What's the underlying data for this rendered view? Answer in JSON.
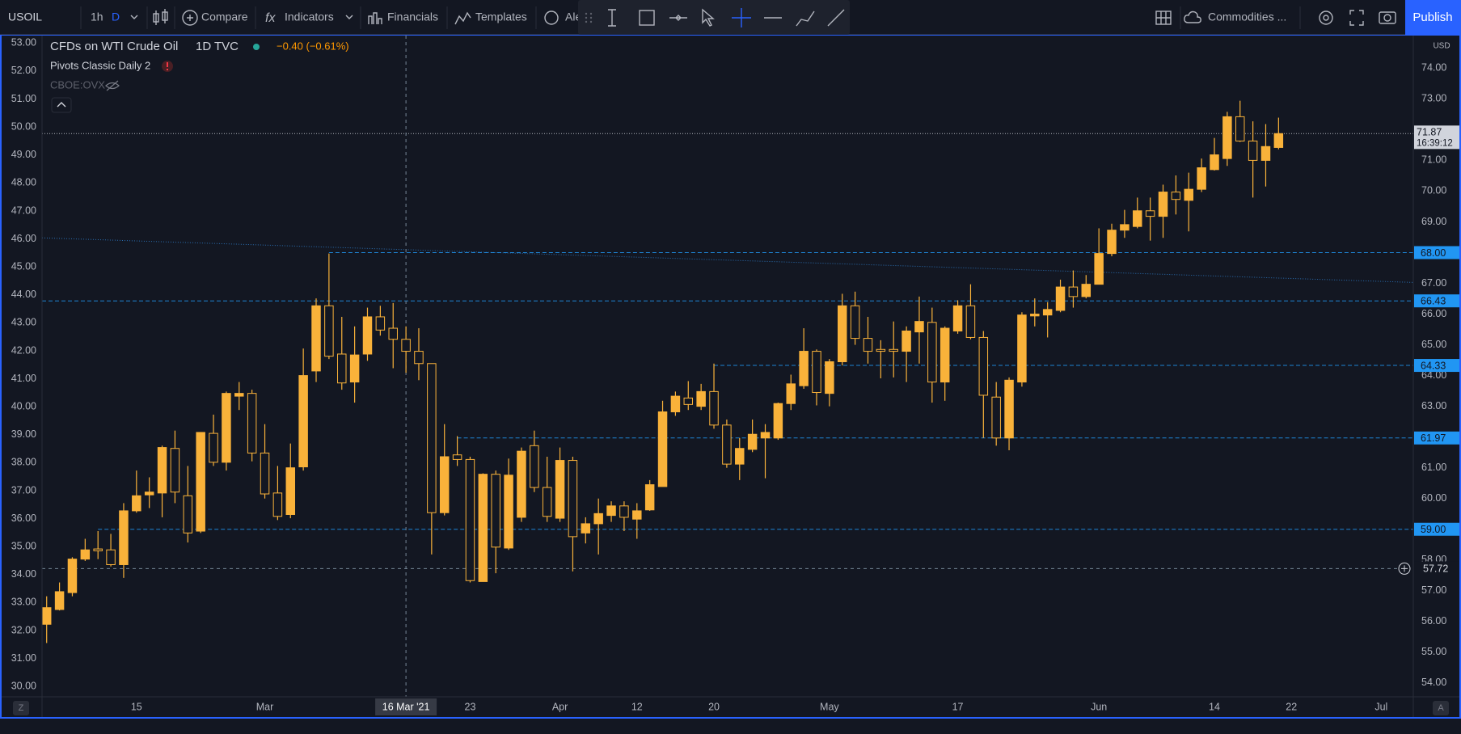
{
  "toolbar": {
    "symbol": "USOIL",
    "interval": "1h",
    "interval_active": "D",
    "compare": "Compare",
    "indicators": "Indicators",
    "financials": "Financials",
    "templates": "Templates",
    "alerts": "Ale",
    "layout": "Commodities ...",
    "publish": "Publish"
  },
  "axis_buttons": {
    "left": "Z",
    "right": "A"
  },
  "chart_data": {
    "type": "candlestick",
    "title": "CFDs on WTI Crude Oil",
    "interval": "1D",
    "source": "TVC",
    "change": "−0.40 (−0.61%)",
    "indicators": [
      "Pivots Classic Daily 2",
      "CBOE:OVX"
    ],
    "color": "#f9b23a",
    "level_color": "#2196f3",
    "open": [
      55.91,
      56.39,
      56.94,
      58.03,
      58.36,
      58.33,
      57.85,
      59.6,
      60.12,
      60.18,
      61.63,
      60.09,
      58.94,
      62.12,
      61.18,
      63.33,
      63.42,
      61.48,
      60.18,
      59.48,
      61.03,
      64.15,
      66.27,
      64.7,
      63.79,
      64.7,
      65.91,
      65.54,
      65.18,
      64.79,
      64.39,
      59.54,
      61.42,
      61.27,
      57.3,
      60.79,
      58.39,
      59.39,
      61.72,
      60.36,
      59.36,
      61.24,
      58.88,
      59.18,
      59.45,
      59.76,
      59.33,
      59.63,
      60.39,
      62.82,
      63.27,
      63.0,
      63.48,
      62.39,
      61.12,
      61.6,
      61.97,
      61.97,
      63.09,
      63.67,
      64.79,
      63.42,
      64.45,
      66.27,
      65.21,
      64.85,
      64.85,
      64.79,
      65.42,
      65.73,
      63.79,
      65.45,
      66.27,
      65.24,
      63.3,
      61.97,
      63.79,
      65.94,
      65.97,
      66.12,
      66.88,
      66.57,
      66.97,
      67.97,
      68.73,
      68.85,
      69.36,
      69.18,
      69.97,
      69.7,
      70.06,
      70.7,
      71.06,
      72.42,
      71.63,
      71.0,
      71.42
    ],
    "high": [
      56.82,
      57.27,
      58.09,
      58.69,
      58.94,
      58.85,
      59.85,
      60.91,
      60.69,
      61.72,
      62.21,
      61.06,
      62.15,
      62.73,
      63.48,
      63.79,
      63.54,
      62.42,
      61.06,
      61.79,
      64.88,
      66.51,
      67.97,
      65.91,
      65.6,
      66.21,
      66.27,
      66.36,
      65.6,
      65.54,
      64.39,
      62.42,
      62.03,
      61.36,
      60.82,
      60.91,
      61.3,
      61.66,
      62.21,
      61.36,
      61.66,
      61.36,
      59.39,
      60.0,
      59.91,
      59.91,
      59.85,
      60.6,
      63.18,
      63.48,
      63.82,
      63.73,
      64.39,
      62.57,
      61.97,
      62.57,
      62.42,
      63.12,
      64.03,
      65.54,
      64.85,
      64.54,
      66.66,
      66.73,
      65.91,
      65.15,
      65.76,
      65.6,
      66.57,
      66.21,
      65.6,
      66.45,
      66.97,
      65.45,
      63.79,
      63.94,
      66.06,
      66.51,
      66.39,
      67.12,
      67.42,
      67.27,
      68.79,
      68.94,
      69.39,
      69.79,
      69.79,
      70.21,
      70.51,
      70.6,
      71.06,
      71.73,
      72.58,
      72.94,
      72.27,
      72.18,
      72.39
    ],
    "low": [
      55.3,
      56.36,
      56.82,
      57.97,
      58.03,
      57.79,
      57.42,
      59.54,
      59.69,
      59.39,
      59.85,
      58.57,
      58.88,
      61.06,
      60.91,
      62.88,
      61.21,
      60.0,
      59.3,
      59.36,
      60.91,
      63.79,
      64.54,
      63.54,
      63.12,
      64.48,
      65.3,
      64.24,
      64.09,
      63.85,
      58.18,
      59.45,
      61.06,
      57.27,
      57.33,
      57.57,
      58.33,
      59.24,
      60.21,
      59.24,
      59.24,
      57.63,
      58.54,
      58.18,
      59.24,
      58.94,
      58.69,
      59.6,
      60.39,
      62.69,
      62.88,
      62.88,
      62.27,
      61.0,
      60.6,
      61.51,
      60.66,
      61.91,
      62.88,
      63.57,
      63.03,
      63.0,
      64.33,
      65.0,
      64.39,
      63.91,
      63.94,
      63.79,
      64.39,
      63.12,
      63.18,
      65.36,
      65.18,
      61.97,
      61.72,
      61.57,
      63.64,
      65.6,
      65.24,
      66.06,
      66.21,
      66.51,
      66.97,
      67.88,
      68.48,
      68.79,
      68.39,
      68.48,
      69.24,
      68.69,
      69.97,
      70.67,
      70.82,
      71.6,
      69.79,
      70.15,
      71.36
    ],
    "close": [
      56.45,
      56.97,
      58.03,
      58.33,
      58.3,
      57.85,
      59.6,
      60.09,
      60.21,
      61.66,
      60.21,
      58.88,
      62.15,
      61.18,
      63.42,
      63.42,
      61.48,
      60.15,
      59.42,
      61.0,
      64.0,
      66.27,
      64.63,
      63.76,
      64.67,
      65.91,
      65.48,
      65.18,
      64.79,
      64.39,
      59.54,
      61.36,
      61.27,
      57.33,
      60.79,
      58.42,
      60.76,
      61.54,
      60.36,
      59.42,
      61.24,
      58.76,
      59.18,
      59.51,
      59.76,
      59.39,
      59.6,
      60.45,
      62.82,
      63.33,
      63.06,
      63.48,
      62.39,
      61.12,
      61.63,
      62.09,
      62.15,
      63.09,
      63.73,
      64.79,
      63.45,
      64.45,
      66.27,
      65.21,
      64.79,
      64.79,
      64.79,
      65.45,
      65.76,
      63.79,
      65.54,
      66.27,
      65.24,
      63.36,
      61.97,
      63.85,
      65.97,
      66.0,
      66.15,
      66.88,
      66.57,
      66.97,
      67.97,
      68.73,
      68.91,
      69.36,
      69.18,
      69.97,
      69.73,
      70.06,
      70.76,
      71.18,
      72.42,
      71.63,
      71.0,
      71.45,
      71.87
    ],
    "xlim": [
      -0.36,
      106.5
    ],
    "xticks": [
      {
        "value": 7,
        "label": "15"
      },
      {
        "value": 17,
        "label": "Mar"
      },
      {
        "value": 33,
        "label": "23"
      },
      {
        "value": 40,
        "label": "Apr"
      },
      {
        "value": 46,
        "label": "12"
      },
      {
        "value": 52,
        "label": "20"
      },
      {
        "value": 61,
        "label": "May"
      },
      {
        "value": 71,
        "label": "17"
      },
      {
        "value": 82,
        "label": "Jun"
      },
      {
        "value": 91,
        "label": "14"
      },
      {
        "value": 97,
        "label": "22"
      },
      {
        "value": 104,
        "label": "Jul"
      }
    ],
    "ylim": [
      53.55,
      75.06
    ],
    "y_unit": "USD",
    "yticks": [
      {
        "value": 54,
        "label": "54.00"
      },
      {
        "value": 55,
        "label": "55.00"
      },
      {
        "value": 56,
        "label": "56.00"
      },
      {
        "value": 57,
        "label": "57.00"
      },
      {
        "value": 58,
        "label": "58.00"
      },
      {
        "value": 60,
        "label": "60.00"
      },
      {
        "value": 61,
        "label": "61.00"
      },
      {
        "value": 63,
        "label": "63.00"
      },
      {
        "value": 64,
        "label": "64.00"
      },
      {
        "value": 65,
        "label": "65.00"
      },
      {
        "value": 66,
        "label": "66.00"
      },
      {
        "value": 67,
        "label": "67.00"
      },
      {
        "value": 69,
        "label": "69.00"
      },
      {
        "value": 70,
        "label": "70.00"
      },
      {
        "value": 71,
        "label": "71.00"
      },
      {
        "value": 73,
        "label": "73.00"
      },
      {
        "value": 74,
        "label": "74.00"
      }
    ],
    "y2lim": [
      29.63,
      53.27
    ],
    "y2ticks": [
      {
        "value": 30,
        "label": "30.00"
      },
      {
        "value": 31,
        "label": "31.00"
      },
      {
        "value": 32,
        "label": "32.00"
      },
      {
        "value": 33,
        "label": "33.00"
      },
      {
        "value": 34,
        "label": "34.00"
      },
      {
        "value": 35,
        "label": "35.00"
      },
      {
        "value": 36,
        "label": "36.00"
      },
      {
        "value": 37,
        "label": "37.00"
      },
      {
        "value": 38,
        "label": "38.00"
      },
      {
        "value": 39,
        "label": "39.00"
      },
      {
        "value": 40,
        "label": "40.00"
      },
      {
        "value": 41,
        "label": "41.00"
      },
      {
        "value": 42,
        "label": "42.00"
      },
      {
        "value": 43,
        "label": "43.00"
      },
      {
        "value": 44,
        "label": "44.00"
      },
      {
        "value": 45,
        "label": "45.00"
      },
      {
        "value": 46,
        "label": "46.00"
      },
      {
        "value": 47,
        "label": "47.00"
      },
      {
        "value": 48,
        "label": "48.00"
      },
      {
        "value": 49,
        "label": "49.00"
      },
      {
        "value": 50,
        "label": "50.00"
      },
      {
        "value": 51,
        "label": "51.00"
      },
      {
        "value": 52,
        "label": "52.00"
      },
      {
        "value": 53,
        "label": "53.00"
      }
    ],
    "levels": [
      {
        "value": 68,
        "label": "68.00",
        "start": 22
      },
      {
        "value": 66.43,
        "label": "66.43",
        "start": -0.36
      },
      {
        "value": 64.33,
        "label": "64.33",
        "start": 52
      },
      {
        "value": 61.97,
        "label": "61.97",
        "start": 32
      },
      {
        "value": 59,
        "label": "59.00",
        "start": 4
      }
    ],
    "trendline": {
      "x": [
        -0.36,
        106.5
      ],
      "y": [
        68.48,
        67.03
      ]
    },
    "last_price": {
      "value": 71.87,
      "label": "71.87",
      "countdown": "16:39:12"
    },
    "crosshair": {
      "x": {
        "value": 28,
        "label": "16 Mar '21"
      },
      "y": {
        "value": 57.72,
        "label": "57.72"
      }
    }
  }
}
